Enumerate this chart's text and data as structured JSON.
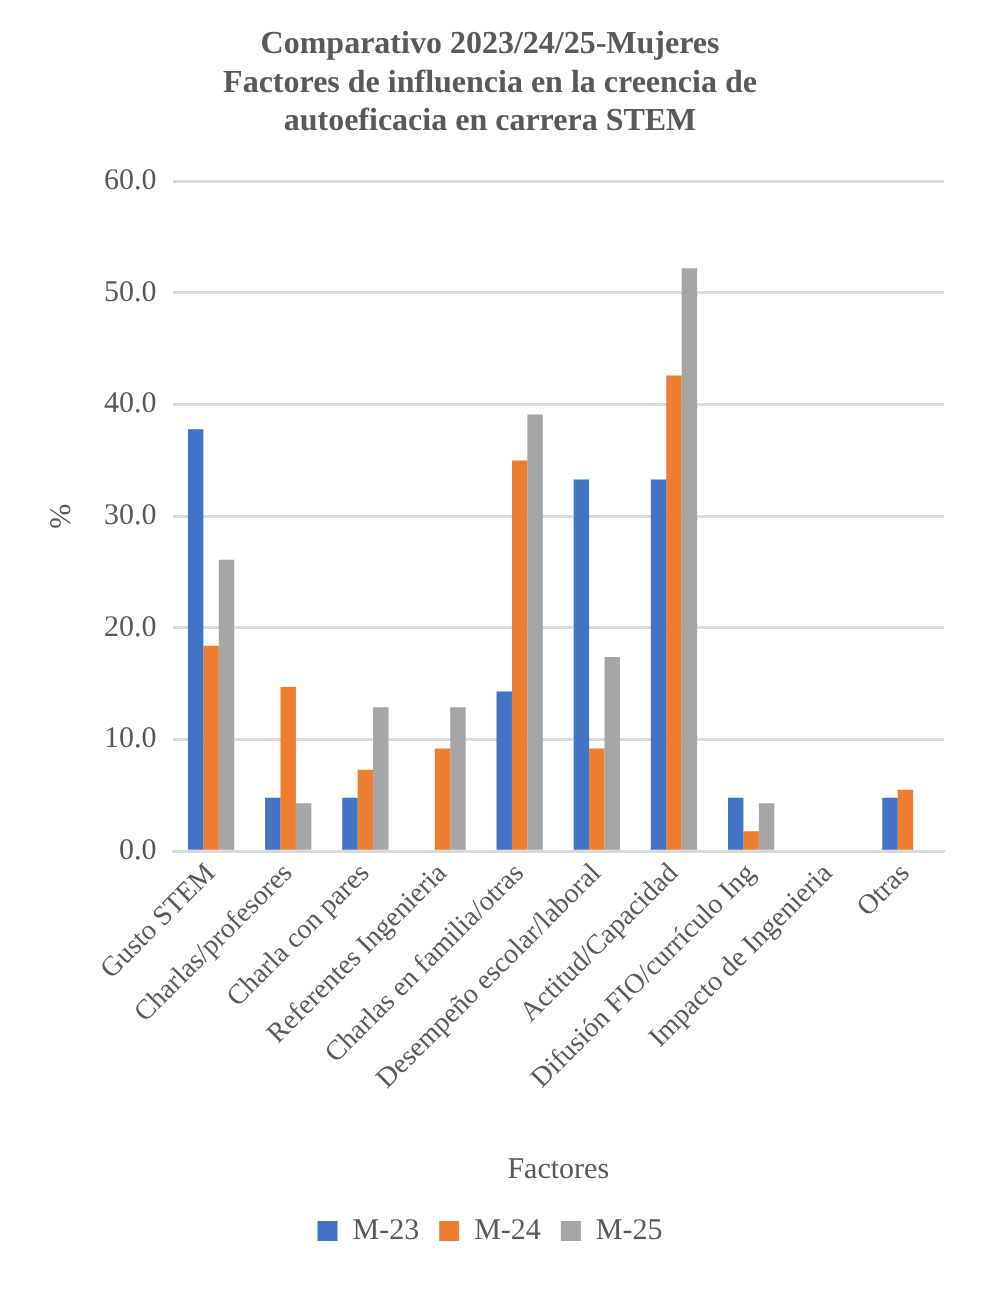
{
  "chart_data": {
    "type": "bar",
    "title": "Comparativo 2023/24/25-Mujeres\nFactores de influencia en la creencia de\nautoeficacia en carrera STEM",
    "xlabel": "Factores",
    "ylabel": "%",
    "categories": [
      "Gusto STEM",
      "Charlas/profesores",
      "Charla con pares",
      "Referentes Ingenieria",
      "Charlas en familia/otras",
      "Desempeño escolar/laboral",
      "Actitud/Capacidad",
      "Difusión FIO/currículo Ing",
      "Impacto de Ingenieria",
      "Otras"
    ],
    "series": [
      {
        "name": "M-23",
        "color": "#4472c4",
        "values": [
          37.8,
          4.8,
          4.8,
          null,
          14.3,
          33.3,
          33.3,
          4.8,
          null,
          4.8
        ]
      },
      {
        "name": "M-24",
        "color": "#ed7d31",
        "values": [
          18.4,
          14.7,
          7.3,
          9.2,
          35.0,
          9.2,
          42.6,
          1.8,
          null,
          5.5
        ]
      },
      {
        "name": "M-25",
        "color": "#a5a5a5",
        "values": [
          26.1,
          4.3,
          12.9,
          12.9,
          39.1,
          17.4,
          52.2,
          4.3,
          null,
          null
        ]
      }
    ],
    "ylim": [
      0,
      60
    ],
    "yticks": [
      {
        "value": 0,
        "label": "0.0"
      },
      {
        "value": 10,
        "label": "10.0"
      },
      {
        "value": 20,
        "label": "20.0"
      },
      {
        "value": 30,
        "label": "30.0"
      },
      {
        "value": 40,
        "label": "40.0"
      },
      {
        "value": 50,
        "label": "50.0"
      },
      {
        "value": 60,
        "label": "60.0"
      }
    ],
    "grid": "y",
    "legend": "bottom"
  }
}
